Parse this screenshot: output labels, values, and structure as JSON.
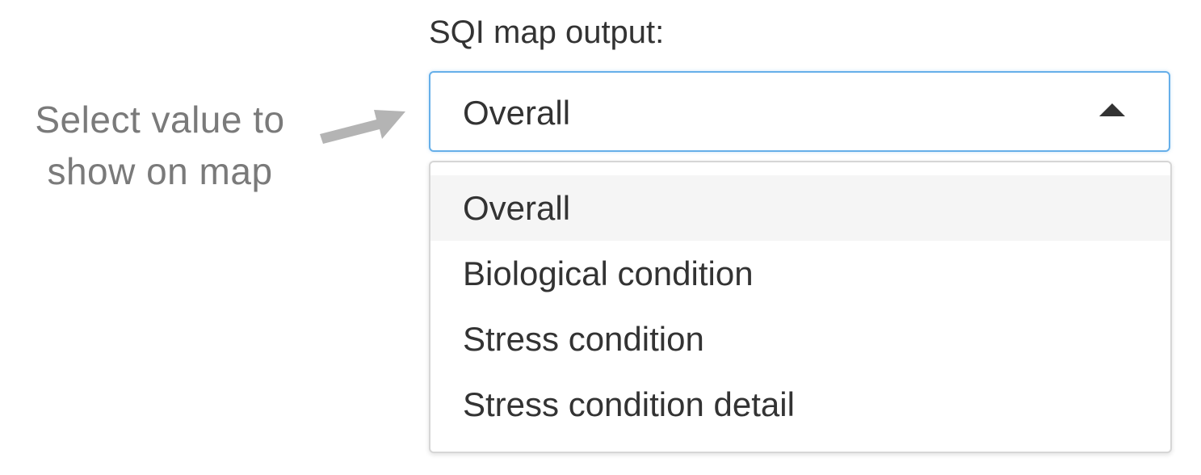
{
  "annotation": {
    "line1": "Select  value to",
    "line2": "show on map",
    "color": "#7a7a7a"
  },
  "select": {
    "label": "SQI map output:",
    "value": "Overall",
    "focus_color": "#66afe9",
    "options": [
      {
        "label": "Overall",
        "highlighted": true
      },
      {
        "label": "Biological condition",
        "highlighted": false
      },
      {
        "label": "Stress condition",
        "highlighted": false
      },
      {
        "label": "Stress condition detail",
        "highlighted": false
      }
    ]
  },
  "icons": {
    "caret": "caret-up-icon",
    "arrow": "arrow-right-icon"
  }
}
